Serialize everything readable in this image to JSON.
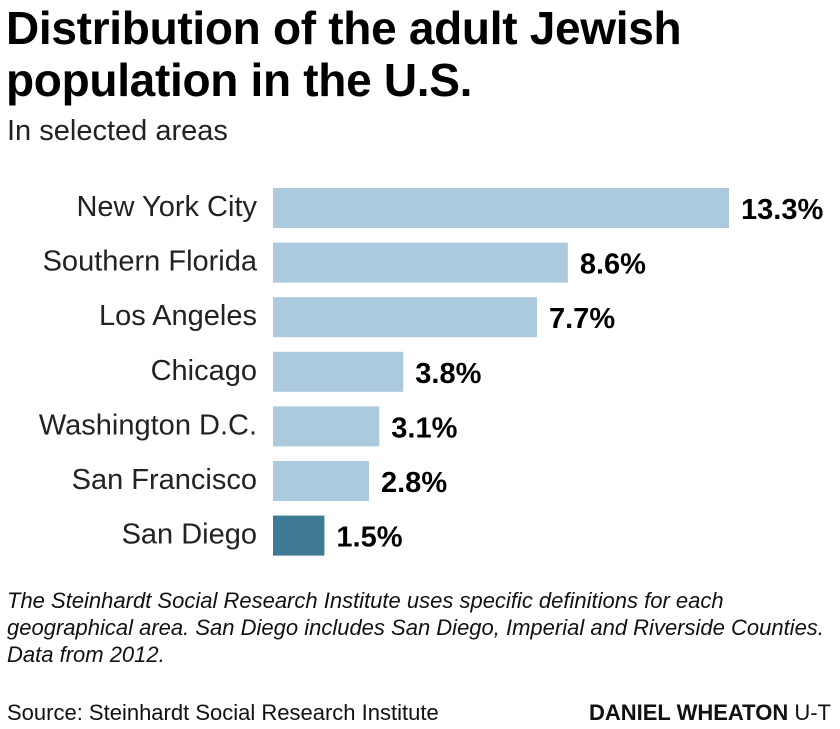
{
  "title": "Distribution of the adult Jewish population in the U.S.",
  "subtitle": "In selected areas",
  "note": "The Steinhardt Social Research Institute uses specific definitions for each geographical area. San Diego includes San Diego, Imperial and Riverside Counties. Data from 2012.",
  "source": "Source: Steinhardt Social Research Institute",
  "credit_name": "DANIEL WHEATON",
  "credit_org": "U-T",
  "colors": {
    "bar": "#abcadd",
    "highlight": "#3f7a95"
  },
  "chart_data": {
    "type": "bar",
    "orientation": "horizontal",
    "categories": [
      "New York City",
      "Southern Florida",
      "Los Angeles",
      "Chicago",
      "Washington D.C.",
      "San Francisco",
      "San Diego"
    ],
    "values": [
      13.3,
      8.6,
      7.7,
      3.8,
      3.1,
      2.8,
      1.5
    ],
    "value_labels": [
      "13.3%",
      "8.6%",
      "7.7%",
      "3.8%",
      "3.1%",
      "2.8%",
      "1.5%"
    ],
    "highlight": "San Diego",
    "unit": "%",
    "xlim": [
      0,
      13.3
    ],
    "grid": false
  }
}
